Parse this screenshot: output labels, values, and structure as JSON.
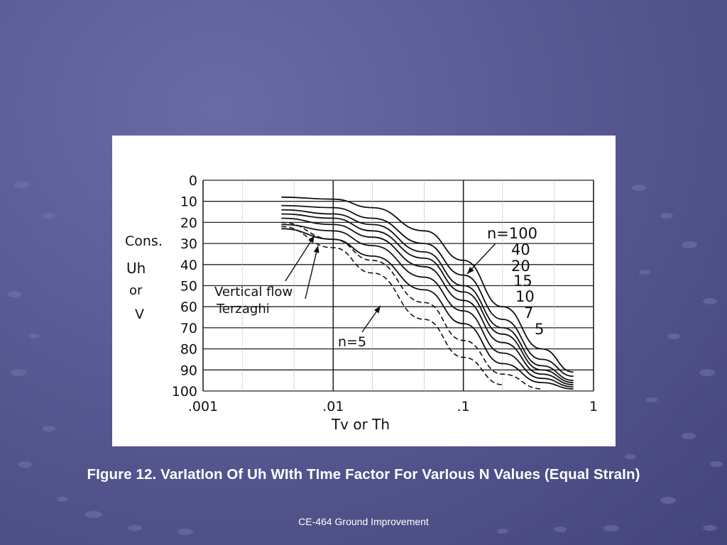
{
  "slide": {
    "caption": "FIgure 12. VarIatIon Of Uh WIth TIme Factor For VarIous N Values (Equal StraIn)",
    "footer": "CE-464 Ground Improvement",
    "background_color": "#55568f",
    "caption_color": "#ffffff"
  },
  "chart_data": {
    "type": "line",
    "title": "",
    "ylabel_lines": [
      "Cons.",
      "Uh",
      "or",
      "V"
    ],
    "xlabel": "Tv or Th",
    "x_scale": "log",
    "xlim": [
      0.001,
      1
    ],
    "ylim": [
      0,
      100
    ],
    "y_inverted": true,
    "grid": true,
    "x_ticks": [
      {
        "value": 0.001,
        "label": ".001"
      },
      {
        "value": 0.01,
        "label": ".01"
      },
      {
        "value": 0.1,
        "label": ".1"
      },
      {
        "value": 1,
        "label": "1"
      }
    ],
    "y_ticks": [
      {
        "value": 0,
        "label": "0"
      },
      {
        "value": 10,
        "label": "10"
      },
      {
        "value": 20,
        "label": "20"
      },
      {
        "value": 30,
        "label": "30"
      },
      {
        "value": 40,
        "label": "40"
      },
      {
        "value": 50,
        "label": "50"
      },
      {
        "value": 60,
        "label": "60"
      },
      {
        "value": 70,
        "label": "70"
      },
      {
        "value": 80,
        "label": "80"
      },
      {
        "value": 90,
        "label": "90"
      },
      {
        "value": 100,
        "label": "100"
      }
    ],
    "series_labels": [
      "n=100",
      "40",
      "20",
      "15",
      "10",
      "7",
      "5"
    ],
    "annotations": [
      {
        "text": "Vertical flow"
      },
      {
        "text": "Terzaghi"
      },
      {
        "text": "n=5"
      }
    ],
    "series": [
      {
        "name": "n=100",
        "x": [
          0.004,
          0.01,
          0.02,
          0.05,
          0.1,
          0.2,
          0.4,
          0.7
        ],
        "y": [
          8,
          9,
          13,
          24,
          38,
          60,
          80,
          91
        ]
      },
      {
        "name": "40",
        "x": [
          0.004,
          0.01,
          0.02,
          0.05,
          0.1,
          0.2,
          0.4,
          0.7
        ],
        "y": [
          12,
          13,
          18,
          30,
          45,
          66,
          85,
          93
        ]
      },
      {
        "name": "20",
        "x": [
          0.004,
          0.01,
          0.02,
          0.05,
          0.1,
          0.2,
          0.4,
          0.7
        ],
        "y": [
          14,
          16,
          21,
          34,
          50,
          70,
          88,
          95
        ]
      },
      {
        "name": "15",
        "x": [
          0.004,
          0.01,
          0.02,
          0.05,
          0.1,
          0.2,
          0.4,
          0.7
        ],
        "y": [
          16,
          18,
          24,
          37,
          53,
          73,
          90,
          96
        ]
      },
      {
        "name": "10",
        "x": [
          0.004,
          0.01,
          0.02,
          0.05,
          0.1,
          0.2,
          0.4,
          0.7
        ],
        "y": [
          18,
          21,
          27,
          41,
          57,
          77,
          92,
          97
        ]
      },
      {
        "name": "7",
        "x": [
          0.004,
          0.01,
          0.02,
          0.05,
          0.1,
          0.2,
          0.4,
          0.7
        ],
        "y": [
          21,
          24,
          31,
          46,
          62,
          82,
          94,
          98
        ]
      },
      {
        "name": "5",
        "x": [
          0.004,
          0.01,
          0.02,
          0.05,
          0.1,
          0.2,
          0.4,
          0.7
        ],
        "y": [
          23,
          28,
          36,
          52,
          68,
          87,
          96,
          99
        ]
      },
      {
        "name": "Vertical flow",
        "x": [
          0.004,
          0.01,
          0.02,
          0.05,
          0.1,
          0.2,
          0.4
        ],
        "y": [
          20,
          28,
          38,
          58,
          76,
          92,
          99
        ]
      },
      {
        "name": "Terzaghi",
        "x": [
          0.004,
          0.01,
          0.02,
          0.05,
          0.1,
          0.2
        ],
        "y": [
          22,
          32,
          44,
          66,
          84,
          97
        ]
      }
    ]
  }
}
